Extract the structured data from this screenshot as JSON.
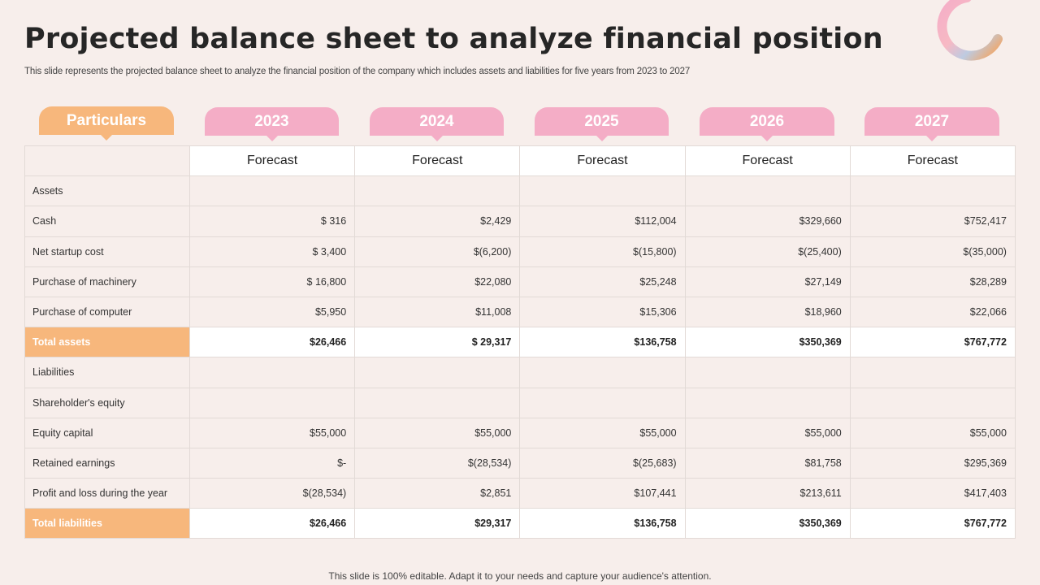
{
  "title": "Projected balance sheet to analyze financial position",
  "subtitle": "This slide represents the projected balance sheet to analyze  the financial position of the company which includes assets and liabilities for five years from 2023 to 2027",
  "header": {
    "particulars": "Particulars",
    "years": [
      "2023",
      "2024",
      "2025",
      "2026",
      "2027"
    ],
    "subheaders": [
      "Forecast",
      "Forecast",
      "Forecast",
      "Forecast",
      "Forecast"
    ]
  },
  "rows": [
    {
      "label": "Assets",
      "values": [
        "",
        "",
        "",
        "",
        ""
      ],
      "total": false
    },
    {
      "label": "Cash",
      "values": [
        "$ 316",
        "$2,429",
        "$112,004",
        "$329,660",
        "$752,417"
      ],
      "total": false
    },
    {
      "label": "Net startup cost",
      "values": [
        "$ 3,400",
        "$(6,200)",
        "$(15,800)",
        "$(25,400)",
        "$(35,000)"
      ],
      "total": false
    },
    {
      "label": "Purchase  of machinery",
      "values": [
        "$ 16,800",
        "$22,080",
        "$25,248",
        "$27,149",
        "$28,289"
      ],
      "total": false
    },
    {
      "label": "Purchase  of computer",
      "values": [
        "$5,950",
        "$11,008",
        "$15,306",
        "$18,960",
        "$22,066"
      ],
      "total": false
    },
    {
      "label": "Total assets",
      "values": [
        "$26,466",
        "$ 29,317",
        "$136,758",
        "$350,369",
        "$767,772"
      ],
      "total": true
    },
    {
      "label": "Liabilities",
      "values": [
        "",
        "",
        "",
        "",
        ""
      ],
      "total": false
    },
    {
      "label": "Shareholder's  equity",
      "values": [
        "",
        "",
        "",
        "",
        ""
      ],
      "total": false
    },
    {
      "label": "Equity capital",
      "values": [
        "$55,000",
        "$55,000",
        "$55,000",
        "$55,000",
        "$55,000"
      ],
      "total": false
    },
    {
      "label": "Retained  earnings",
      "values": [
        "$-",
        "$(28,534)",
        "$(25,683)",
        "$81,758",
        "$295,369"
      ],
      "total": false
    },
    {
      "label": "Profit  and loss during the year",
      "values": [
        "$(28,534)",
        "$2,851",
        "$107,441",
        "$213,611",
        "$417,403"
      ],
      "total": false
    },
    {
      "label": "Total liabilities",
      "values": [
        "$26,466",
        "$29,317",
        "$136,758",
        "$350,369",
        "$767,772"
      ],
      "total": true
    }
  ],
  "footer": "This slide is 100% editable. Adapt it to your needs and capture your audience's attention.",
  "colors": {
    "background": "#f7eeeb",
    "orange": "#f7b77c",
    "pink": "#f4adc6"
  },
  "decoration": {
    "icon": "gradient-ring-icon"
  }
}
